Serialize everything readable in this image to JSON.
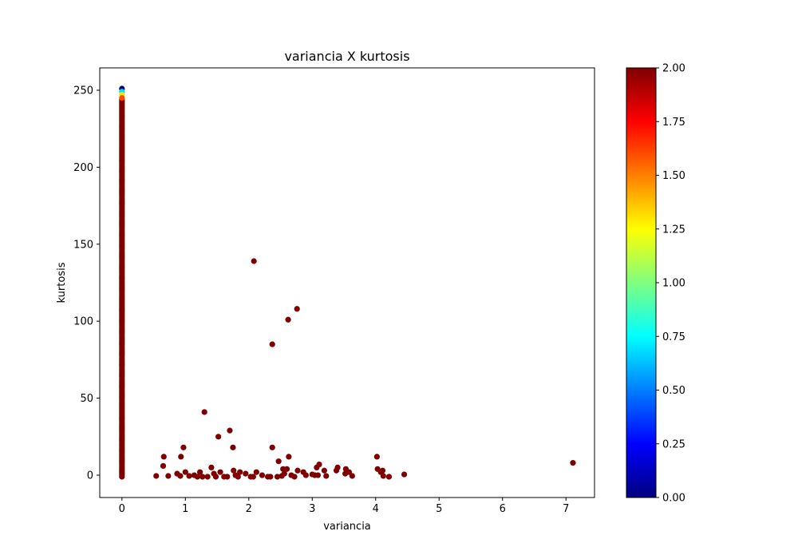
{
  "chart_data": {
    "type": "scatter",
    "title": "variancia X kurtosis",
    "xlabel": "variancia",
    "ylabel": "kurtosis",
    "xlim": [
      -0.35,
      7.45
    ],
    "ylim": [
      -14.5,
      264.5
    ],
    "x_ticks": [
      0,
      1,
      2,
      3,
      4,
      5,
      6,
      7
    ],
    "y_ticks": [
      0,
      50,
      100,
      150,
      200,
      250
    ],
    "colorbar": {
      "colormap": "jet",
      "range": [
        0,
        2
      ],
      "ticks": [
        "0.00",
        "0.25",
        "0.50",
        "0.75",
        "1.00",
        "1.25",
        "1.50",
        "1.75",
        "2.00"
      ]
    },
    "marker_color": "#7f0000",
    "colormap_colors": [
      "#00007f",
      "#0000ff",
      "#007fff",
      "#00ffff",
      "#7fff7f",
      "#ffff00",
      "#ff7f00",
      "#ff0000",
      "#7f0000"
    ],
    "vertical_column": {
      "x": 0,
      "y_min": -1,
      "y_max": 244,
      "top_points": [
        {
          "x": 0,
          "y": 251,
          "c": 0
        },
        {
          "x": 0,
          "y": 249,
          "c": 0.7
        },
        {
          "x": 0,
          "y": 247,
          "c": 1.3
        },
        {
          "x": 0,
          "y": 245,
          "c": 1.6
        }
      ]
    },
    "points": [
      {
        "x": 2.08,
        "y": 139
      },
      {
        "x": 2.76,
        "y": 108
      },
      {
        "x": 2.62,
        "y": 101
      },
      {
        "x": 2.37,
        "y": 85
      },
      {
        "x": 1.3,
        "y": 41
      },
      {
        "x": 1.7,
        "y": 29
      },
      {
        "x": 1.52,
        "y": 25
      },
      {
        "x": 0.97,
        "y": 18
      },
      {
        "x": 1.75,
        "y": 18
      },
      {
        "x": 2.37,
        "y": 18
      },
      {
        "x": 0.66,
        "y": 12
      },
      {
        "x": 0.93,
        "y": 12
      },
      {
        "x": 2.63,
        "y": 12
      },
      {
        "x": 4.02,
        "y": 12
      },
      {
        "x": 2.47,
        "y": 9
      },
      {
        "x": 7.11,
        "y": 8
      },
      {
        "x": 3.11,
        "y": 7
      },
      {
        "x": 0.65,
        "y": 6
      },
      {
        "x": 3.07,
        "y": 5
      },
      {
        "x": 1.41,
        "y": 5
      },
      {
        "x": 3.4,
        "y": 5
      },
      {
        "x": 2.54,
        "y": 4
      },
      {
        "x": 3.53,
        "y": 4
      },
      {
        "x": 4.03,
        "y": 4
      },
      {
        "x": 2.6,
        "y": 4
      },
      {
        "x": 1.76,
        "y": 3
      },
      {
        "x": 4.11,
        "y": 3
      },
      {
        "x": 2.77,
        "y": 3
      },
      {
        "x": 3.19,
        "y": 3
      },
      {
        "x": 3.38,
        "y": 3
      },
      {
        "x": 4.08,
        "y": 2
      },
      {
        "x": 1.23,
        "y": 2
      },
      {
        "x": 1.55,
        "y": 2
      },
      {
        "x": 1.86,
        "y": 2
      },
      {
        "x": 2.12,
        "y": 2
      },
      {
        "x": 2.86,
        "y": 2
      },
      {
        "x": 3.58,
        "y": 2
      },
      {
        "x": 1.0,
        "y": 2
      },
      {
        "x": 0.87,
        "y": 1
      },
      {
        "x": 1.45,
        "y": 1
      },
      {
        "x": 1.95,
        "y": 1
      },
      {
        "x": 2.56,
        "y": 1
      },
      {
        "x": 3.52,
        "y": 1
      },
      {
        "x": 4.45,
        "y": 0.5
      },
      {
        "x": 3.0,
        "y": 0.5
      },
      {
        "x": 3.09,
        "y": 0
      },
      {
        "x": 0.54,
        "y": -0.5
      },
      {
        "x": 0.73,
        "y": -0.5
      },
      {
        "x": 0.92,
        "y": -0.5
      },
      {
        "x": 1.06,
        "y": -0.5
      },
      {
        "x": 1.14,
        "y": 0
      },
      {
        "x": 1.19,
        "y": -1
      },
      {
        "x": 1.27,
        "y": -1
      },
      {
        "x": 1.35,
        "y": -1
      },
      {
        "x": 1.48,
        "y": -1
      },
      {
        "x": 1.61,
        "y": -1
      },
      {
        "x": 1.66,
        "y": -1
      },
      {
        "x": 1.79,
        "y": 0
      },
      {
        "x": 1.83,
        "y": -1
      },
      {
        "x": 2.03,
        "y": -1
      },
      {
        "x": 2.07,
        "y": -1
      },
      {
        "x": 2.21,
        "y": 0
      },
      {
        "x": 2.3,
        "y": -1
      },
      {
        "x": 2.34,
        "y": -1
      },
      {
        "x": 2.45,
        "y": -1
      },
      {
        "x": 2.52,
        "y": -0.5
      },
      {
        "x": 2.67,
        "y": 0
      },
      {
        "x": 2.72,
        "y": -1
      },
      {
        "x": 2.9,
        "y": 0
      },
      {
        "x": 3.04,
        "y": 0
      },
      {
        "x": 3.22,
        "y": -0.5
      },
      {
        "x": 3.63,
        "y": -0.5
      },
      {
        "x": 4.12,
        "y": -0.5
      },
      {
        "x": 4.21,
        "y": -1
      }
    ]
  }
}
